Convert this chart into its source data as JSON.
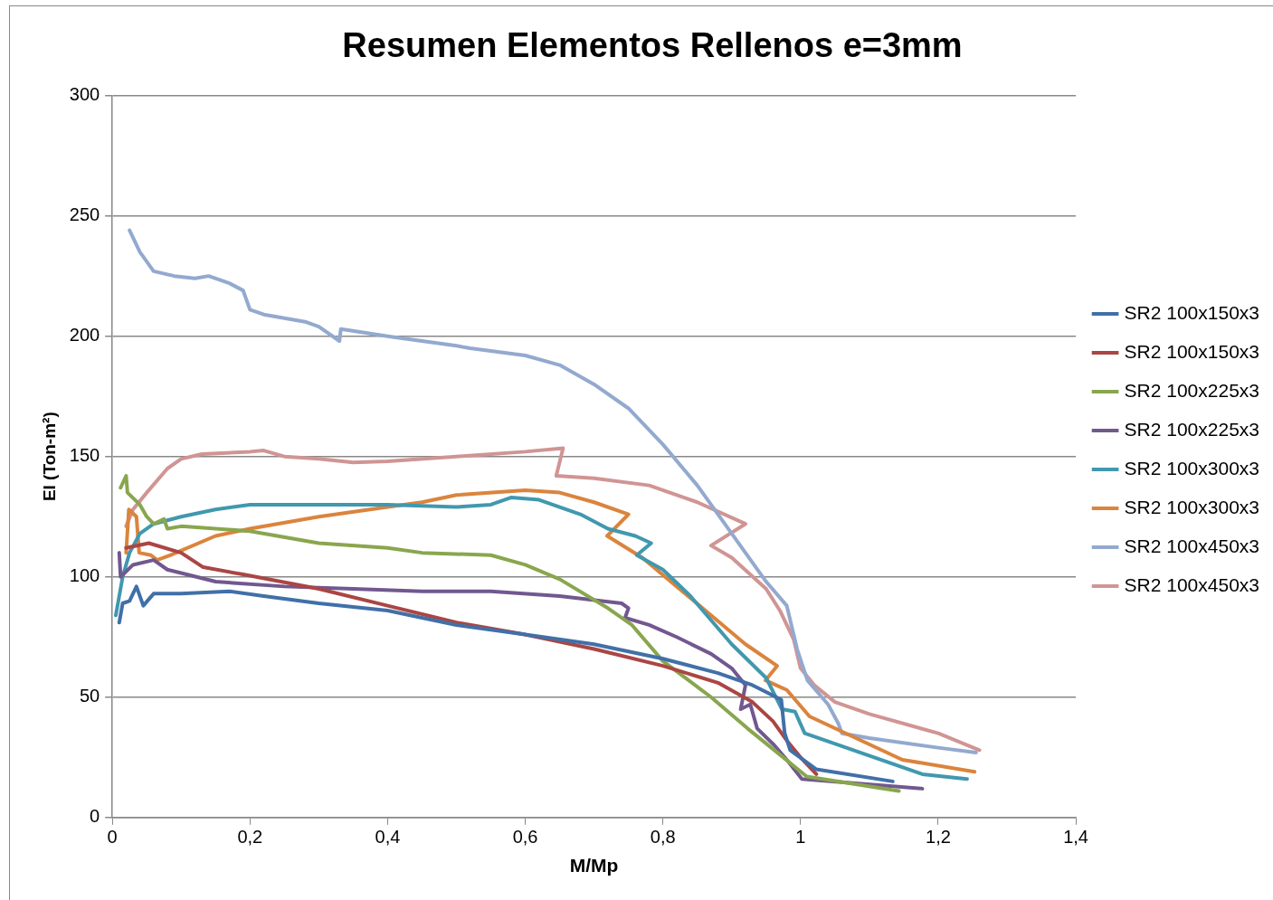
{
  "chart_data": {
    "type": "line",
    "title": "Resumen Elementos Rellenos e=3mm",
    "xlabel": "M/Mp",
    "ylabel": "EI (Ton-m²)",
    "xlim": [
      0,
      1.4
    ],
    "xticks": [
      0,
      {
        "value": 0.2,
        "label": "0,2"
      },
      {
        "value": 0.4,
        "label": "0,4"
      },
      {
        "value": 0.6,
        "label": "0,6"
      },
      {
        "value": 0.8,
        "label": "0,8"
      },
      1,
      {
        "value": 1.2,
        "label": "1,2"
      },
      {
        "value": 1.4,
        "label": "1,4"
      }
    ],
    "ylim": [
      0,
      300
    ],
    "yticks": [
      0,
      50,
      100,
      150,
      200,
      250,
      300
    ],
    "grid": "y",
    "legend": "right",
    "marker": "none",
    "line_style": "solid",
    "series": [
      {
        "name": "SR2 100x150x3",
        "color": "#4170a8",
        "x": [
          0.01,
          0.015,
          0.025,
          0.035,
          0.045,
          0.06,
          0.1,
          0.17,
          0.22,
          0.3,
          0.4,
          0.5,
          0.6,
          0.7,
          0.8,
          0.88,
          0.93,
          0.972,
          0.977,
          0.985,
          1.023,
          1.134
        ],
        "values": [
          81,
          89,
          90,
          96,
          88,
          93,
          93,
          94,
          92,
          89,
          86,
          80,
          76,
          72,
          66,
          60,
          55,
          49,
          35,
          28,
          20,
          15
        ]
      },
      {
        "name": "SR2 100x150x3",
        "color": "#aa4644",
        "x": [
          0.02,
          0.053,
          0.1,
          0.132,
          0.19,
          0.3,
          0.4,
          0.5,
          0.6,
          0.7,
          0.8,
          0.88,
          0.93,
          0.96,
          0.98,
          1.0,
          1.023
        ],
        "values": [
          112,
          114,
          110,
          104,
          101,
          95,
          88,
          81,
          76,
          70,
          63,
          56,
          48,
          40,
          32,
          25,
          18
        ]
      },
      {
        "name": "SR2 100x225x3",
        "color": "#89a64e",
        "x": [
          0.012,
          0.02,
          0.022,
          0.04,
          0.05,
          0.06,
          0.075,
          0.08,
          0.1,
          0.2,
          0.3,
          0.4,
          0.45,
          0.55,
          0.6,
          0.65,
          0.72,
          0.755,
          0.8,
          0.87,
          0.923,
          0.949,
          1.009,
          1.143
        ],
        "values": [
          137,
          142,
          135,
          130,
          125,
          122,
          124,
          120,
          121,
          119,
          114,
          112,
          110,
          109,
          105,
          99,
          87,
          80,
          65,
          50,
          37,
          31,
          17,
          11
        ]
      },
      {
        "name": "SR2 100x225x3",
        "color": "#71588f",
        "x": [
          0.01,
          0.012,
          0.03,
          0.06,
          0.08,
          0.15,
          0.25,
          0.35,
          0.45,
          0.55,
          0.65,
          0.74,
          0.75,
          0.745,
          0.78,
          0.82,
          0.87,
          0.9,
          0.92,
          0.913,
          0.927,
          0.937,
          0.962,
          0.98,
          1.002,
          1.177
        ],
        "values": [
          110,
          100,
          105,
          107,
          103,
          98,
          96,
          95,
          94,
          94,
          92,
          89,
          87,
          83,
          80,
          75,
          68,
          62,
          55,
          45,
          47,
          37,
          30,
          24,
          16,
          12
        ]
      },
      {
        "name": "SR2 100x300x3",
        "color": "#4198af",
        "x": [
          0.005,
          0.015,
          0.025,
          0.04,
          0.06,
          0.1,
          0.15,
          0.2,
          0.3,
          0.4,
          0.5,
          0.55,
          0.58,
          0.62,
          0.68,
          0.72,
          0.76,
          0.783,
          0.762,
          0.8,
          0.84,
          0.9,
          0.95,
          0.973,
          0.992,
          1.006,
          1.177,
          1.242
        ],
        "values": [
          84,
          100,
          110,
          118,
          122,
          125,
          128,
          130,
          130,
          130,
          129,
          130,
          133,
          132,
          126,
          120,
          117,
          114,
          109,
          103,
          92,
          72,
          58,
          45,
          44,
          35,
          18,
          16
        ]
      },
      {
        "name": "SR2 100x300x3",
        "color": "#db843d",
        "x": [
          0.02,
          0.024,
          0.035,
          0.039,
          0.056,
          0.065,
          0.084,
          0.15,
          0.2,
          0.3,
          0.4,
          0.45,
          0.5,
          0.6,
          0.65,
          0.7,
          0.75,
          0.719,
          0.77,
          0.82,
          0.87,
          0.92,
          0.966,
          0.949,
          0.98,
          1.013,
          1.148,
          1.253
        ],
        "values": [
          110,
          128,
          125,
          110,
          109,
          107,
          109,
          117,
          120,
          125,
          129,
          131,
          134,
          136,
          135,
          131,
          126,
          117,
          108,
          96,
          84,
          72,
          63,
          57,
          53,
          42,
          24,
          19
        ]
      },
      {
        "name": "SR2 100x450x3",
        "color": "#93a9cf",
        "x": [
          0.025,
          0.04,
          0.06,
          0.09,
          0.12,
          0.14,
          0.17,
          0.19,
          0.2,
          0.22,
          0.28,
          0.3,
          0.33,
          0.332,
          0.4,
          0.5,
          0.52,
          0.6,
          0.65,
          0.7,
          0.75,
          0.8,
          0.85,
          0.9,
          0.95,
          0.98,
          0.995,
          1.01,
          1.04,
          1.055,
          1.06,
          1.1,
          1.2,
          1.255
        ],
        "values": [
          244,
          235,
          227,
          225,
          224,
          225,
          222,
          219,
          211,
          209,
          206,
          204,
          198,
          203,
          200,
          196,
          195,
          192,
          188,
          180,
          170,
          155,
          138,
          118,
          98,
          88,
          70,
          57,
          47,
          39,
          35,
          33,
          29,
          27
        ]
      },
      {
        "name": "SR2 100x450x3",
        "color": "#d09593",
        "x": [
          0.02,
          0.03,
          0.05,
          0.08,
          0.1,
          0.13,
          0.2,
          0.22,
          0.25,
          0.3,
          0.35,
          0.4,
          0.5,
          0.6,
          0.655,
          0.645,
          0.7,
          0.78,
          0.85,
          0.92,
          0.87,
          0.9,
          0.95,
          0.97,
          0.99,
          1.0,
          1.02,
          1.05,
          1.1,
          1.2,
          1.26
        ],
        "values": [
          121,
          128,
          135,
          145,
          149,
          151,
          152,
          152.5,
          150,
          149,
          147.5,
          148,
          150,
          152,
          153.5,
          142,
          141,
          138,
          131,
          122,
          113,
          108,
          95,
          86,
          74,
          62,
          55,
          48,
          43,
          35,
          28
        ]
      }
    ]
  }
}
